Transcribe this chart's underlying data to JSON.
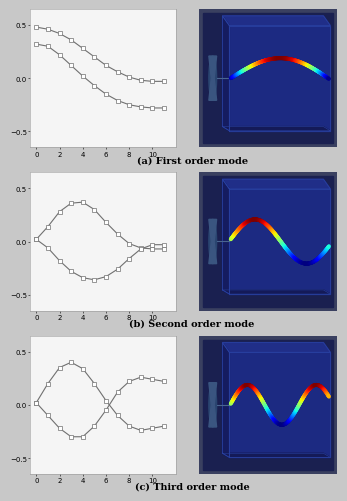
{
  "labels": [
    "(a) First order mode",
    "(b) Second order mode",
    "(c) Third order mode"
  ],
  "bg_color": "#c8c8c8",
  "plot_bg": "#f5f5f5",
  "x_range": [
    -0.5,
    12.0
  ],
  "y_range": [
    -0.65,
    0.65
  ],
  "x_ticks": [
    0,
    2,
    4,
    6,
    8,
    10
  ],
  "y_ticks": [
    -0.5,
    0.0,
    0.5
  ],
  "mode1_c1_x": [
    0,
    1,
    2,
    3,
    4,
    5,
    6,
    7,
    8,
    9,
    10,
    11
  ],
  "mode1_c1_y": [
    0.48,
    0.46,
    0.42,
    0.36,
    0.28,
    0.2,
    0.12,
    0.06,
    0.01,
    -0.02,
    -0.03,
    -0.03
  ],
  "mode1_c2_x": [
    0,
    1,
    2,
    3,
    4,
    5,
    6,
    7,
    8,
    9,
    10,
    11
  ],
  "mode1_c2_y": [
    0.32,
    0.3,
    0.22,
    0.12,
    0.02,
    -0.07,
    -0.15,
    -0.21,
    -0.25,
    -0.27,
    -0.28,
    -0.28
  ],
  "mode2_c1_x": [
    0,
    1,
    2,
    3,
    4,
    5,
    6,
    7,
    8,
    9,
    10,
    11
  ],
  "mode2_c1_y": [
    0.02,
    0.14,
    0.28,
    0.36,
    0.37,
    0.3,
    0.18,
    0.07,
    -0.02,
    -0.06,
    -0.07,
    -0.07
  ],
  "mode2_c2_x": [
    0,
    1,
    2,
    3,
    4,
    5,
    6,
    7,
    8,
    9,
    10,
    11
  ],
  "mode2_c2_y": [
    0.02,
    -0.06,
    -0.18,
    -0.28,
    -0.34,
    -0.36,
    -0.33,
    -0.26,
    -0.16,
    -0.07,
    -0.03,
    -0.03
  ],
  "mode3_c1_x": [
    0,
    1,
    2,
    3,
    4,
    5,
    6,
    7,
    8,
    9,
    10,
    11
  ],
  "mode3_c1_y": [
    0.02,
    0.2,
    0.35,
    0.4,
    0.34,
    0.2,
    0.04,
    -0.1,
    -0.2,
    -0.24,
    -0.22,
    -0.2
  ],
  "mode3_c2_x": [
    0,
    1,
    2,
    3,
    4,
    5,
    6,
    7,
    8,
    9,
    10,
    11
  ],
  "mode3_c2_y": [
    0.02,
    -0.1,
    -0.22,
    -0.3,
    -0.3,
    -0.2,
    -0.05,
    0.12,
    0.22,
    0.26,
    0.24,
    0.22
  ],
  "line_color": "#707070",
  "marker_size": 3.0,
  "line_width": 0.8,
  "tick_fontsize": 5,
  "label_fontsize": 7,
  "fem_bg": "#1a2255",
  "fem_box_front": "#1e2e80",
  "fem_box_top": "#253590",
  "fem_box_side": "#152060"
}
